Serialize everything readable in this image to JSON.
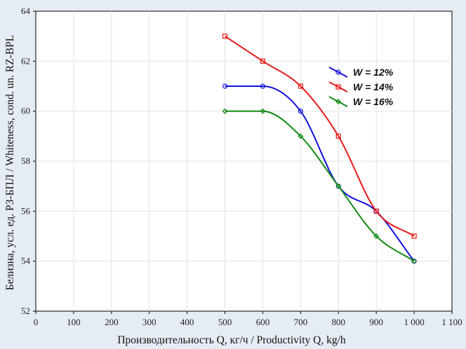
{
  "chart_data": {
    "type": "line",
    "title": "",
    "xlabel": "Производительность Q, кг/ч / Productivity Q, kg/h",
    "ylabel": "Белизна, усл. ед. РЗ-БПЛ / Whiteness, cond. un. RZ-BPL",
    "xlim": [
      0,
      1100
    ],
    "ylim": [
      52,
      64
    ],
    "x_ticks": [
      0,
      100,
      200,
      300,
      400,
      500,
      600,
      700,
      800,
      900,
      1000,
      1100
    ],
    "x_tick_labels": [
      "0",
      "100",
      "200",
      "300",
      "400",
      "500",
      "600",
      "700",
      "800",
      "900",
      "1 000",
      "1 100"
    ],
    "y_ticks": [
      52,
      54,
      56,
      58,
      60,
      62,
      64
    ],
    "y_tick_labels": [
      "52",
      "54",
      "56",
      "58",
      "60",
      "62",
      "64"
    ],
    "grid": true,
    "legend_position": "top-right",
    "x": [
      500,
      600,
      700,
      800,
      900,
      1000
    ],
    "series": [
      {
        "name": "W = 12%",
        "color": "#1010dd",
        "marker": "circle",
        "values": [
          61,
          61,
          60,
          57,
          56,
          54
        ]
      },
      {
        "name": "W = 14%",
        "color": "#e81818",
        "marker": "square",
        "values": [
          63,
          62,
          61,
          59,
          56,
          55
        ]
      },
      {
        "name": "W = 16%",
        "color": "#138a13",
        "marker": "diamond",
        "values": [
          60,
          60,
          59,
          57,
          55,
          54
        ]
      }
    ]
  }
}
